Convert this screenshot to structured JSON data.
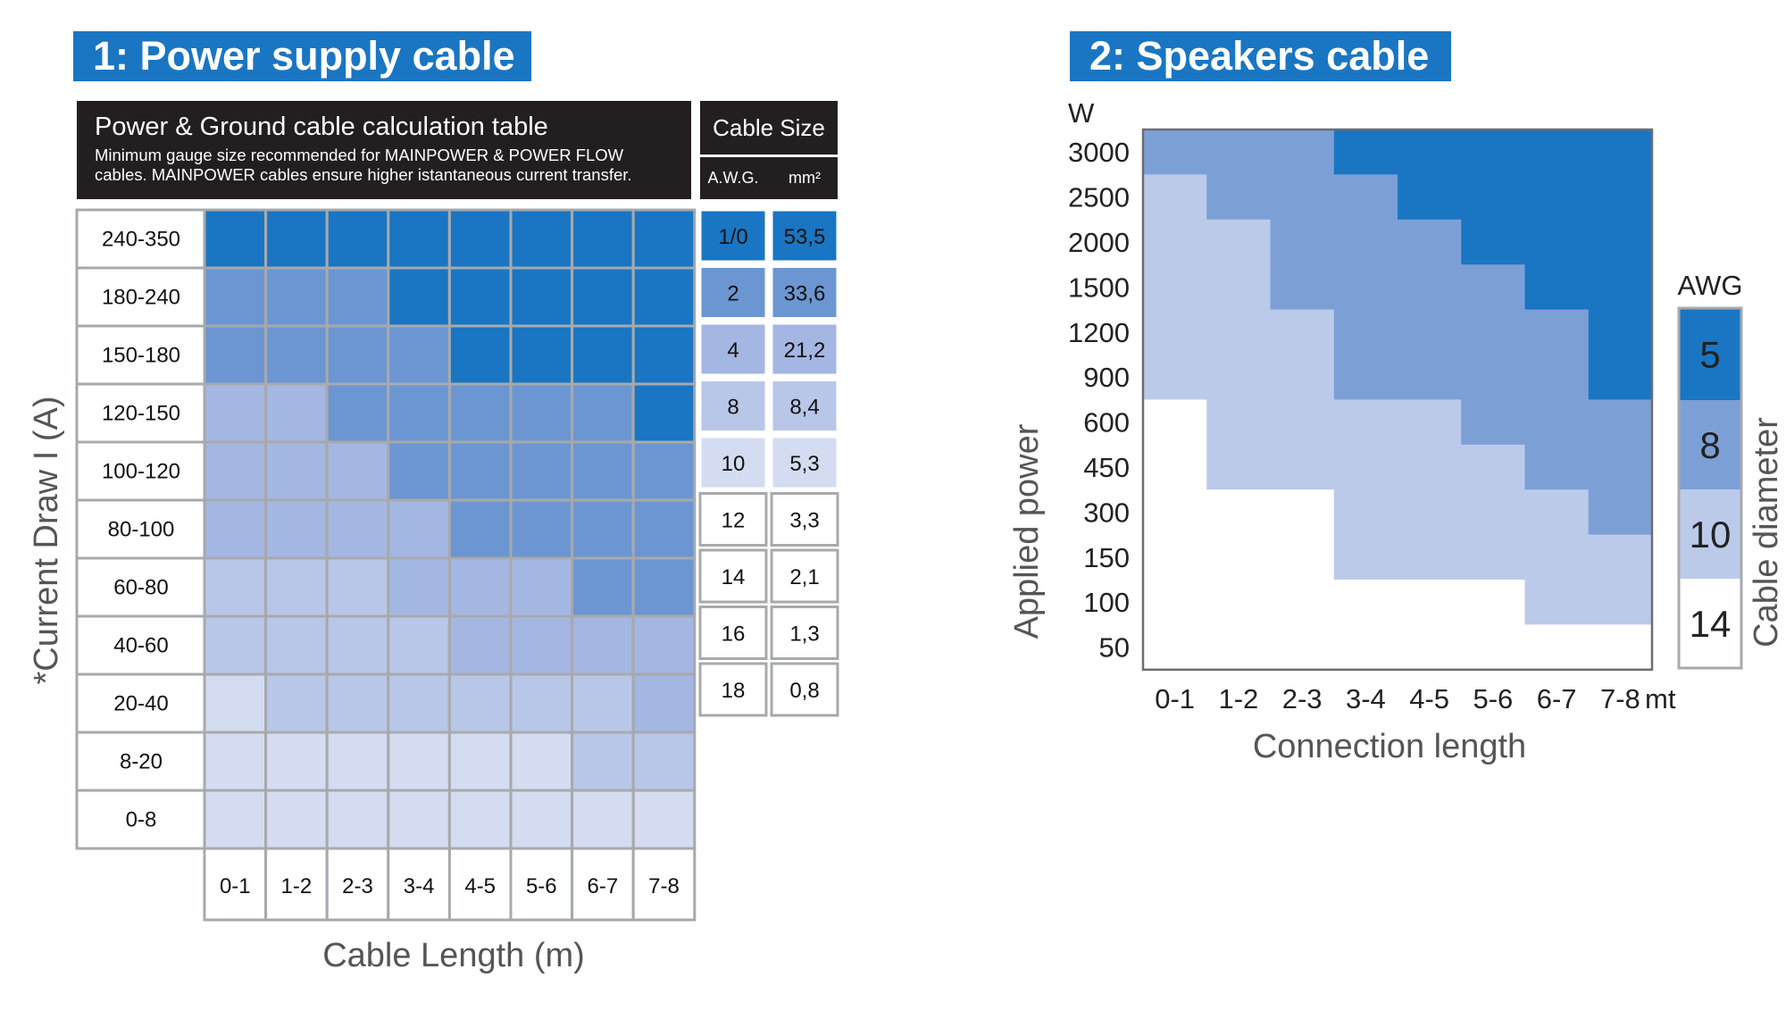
{
  "panel1": {
    "banner": "1: Power supply cable",
    "header_title": "Power & Ground cable calculation table",
    "header_sub_line1": "Minimum gauge size recommended for MAINPOWER & POWER FLOW",
    "header_sub_line2": "cables. MAINPOWER cables ensure higher istantaneous current transfer.",
    "cable_size_title": "Cable Size",
    "awg_header": "A.W.G.",
    "mm2_header": "mm²"
  },
  "panel2": {
    "banner": "2: Speakers cable"
  },
  "colors": {
    "awg_1_0": "#1a76c2",
    "awg_2": "#6b96d1",
    "awg_4": "#a4b6e2",
    "awg_8": "#b8c6e8",
    "awg_10": "#d3dcf1",
    "white": "#ffffff",
    "speaker_5": "#1a76c2",
    "speaker_8": "#7ca0d6",
    "speaker_10": "#bccaea",
    "speaker_14": "#ffffff"
  },
  "chart_data": [
    {
      "type": "heatmap",
      "ylabel": "*Current Draw I (A)",
      "xlabel": "Cable Length (m)",
      "x_categories": [
        "0-1",
        "1-2",
        "2-3",
        "3-4",
        "4-5",
        "5-6",
        "6-7",
        "7-8"
      ],
      "y_categories": [
        "240-350",
        "180-240",
        "150-180",
        "120-150",
        "100-120",
        "80-100",
        "60-80",
        "40-60",
        "20-40",
        "8-20",
        "0-8"
      ],
      "values_awg": [
        [
          "1/0",
          "1/0",
          "1/0",
          "1/0",
          "1/0",
          "1/0",
          "1/0",
          "1/0"
        ],
        [
          "2",
          "2",
          "2",
          "1/0",
          "1/0",
          "1/0",
          "1/0",
          "1/0"
        ],
        [
          "2",
          "2",
          "2",
          "2",
          "1/0",
          "1/0",
          "1/0",
          "1/0"
        ],
        [
          "4",
          "4",
          "2",
          "2",
          "2",
          "2",
          "2",
          "1/0"
        ],
        [
          "4",
          "4",
          "4",
          "2",
          "2",
          "2",
          "2",
          "2"
        ],
        [
          "4",
          "4",
          "4",
          "4",
          "2",
          "2",
          "2",
          "2"
        ],
        [
          "8",
          "8",
          "8",
          "4",
          "4",
          "4",
          "2",
          "2"
        ],
        [
          "8",
          "8",
          "8",
          "8",
          "4",
          "4",
          "4",
          "4"
        ],
        [
          "10",
          "8",
          "8",
          "8",
          "8",
          "8",
          "8",
          "4"
        ],
        [
          "10",
          "10",
          "10",
          "10",
          "10",
          "10",
          "8",
          "8"
        ],
        [
          "10",
          "10",
          "10",
          "10",
          "10",
          "10",
          "10",
          "10"
        ]
      ],
      "legend": [
        {
          "awg": "1/0",
          "mm2": "53,5",
          "color": "#1a76c2",
          "light_text": false
        },
        {
          "awg": "2",
          "mm2": "33,6",
          "color": "#6b96d1"
        },
        {
          "awg": "4",
          "mm2": "21,2",
          "color": "#a4b6e2"
        },
        {
          "awg": "8",
          "mm2": "8,4",
          "color": "#b8c6e8"
        },
        {
          "awg": "10",
          "mm2": "5,3",
          "color": "#d3dcf1"
        },
        {
          "awg": "12",
          "mm2": "3,3",
          "color": "#ffffff"
        },
        {
          "awg": "14",
          "mm2": "2,1",
          "color": "#ffffff"
        },
        {
          "awg": "16",
          "mm2": "1,3",
          "color": "#ffffff"
        },
        {
          "awg": "18",
          "mm2": "0,8",
          "color": "#ffffff"
        }
      ]
    },
    {
      "type": "heatmap",
      "ylabel": "Applied power",
      "y_unit": "W",
      "xlabel": "Connection length",
      "x_unit": "mt",
      "x_categories": [
        "0-1",
        "1-2",
        "2-3",
        "3-4",
        "4-5",
        "5-6",
        "6-7",
        "7-8"
      ],
      "y_categories": [
        "3000",
        "2500",
        "2000",
        "1500",
        "1200",
        "900",
        "600",
        "450",
        "300",
        "150",
        "100",
        "50"
      ],
      "values_awg": [
        [
          8,
          8,
          8,
          5,
          5,
          5,
          5,
          5
        ],
        [
          10,
          8,
          8,
          8,
          5,
          5,
          5,
          5
        ],
        [
          10,
          10,
          8,
          8,
          8,
          5,
          5,
          5
        ],
        [
          10,
          10,
          8,
          8,
          8,
          8,
          5,
          5
        ],
        [
          10,
          10,
          10,
          8,
          8,
          8,
          8,
          5
        ],
        [
          10,
          10,
          10,
          8,
          8,
          8,
          8,
          5
        ],
        [
          14,
          10,
          10,
          10,
          10,
          8,
          8,
          8
        ],
        [
          14,
          10,
          10,
          10,
          10,
          10,
          8,
          8
        ],
        [
          14,
          14,
          14,
          10,
          10,
          10,
          10,
          8
        ],
        [
          14,
          14,
          14,
          10,
          10,
          10,
          10,
          10
        ],
        [
          14,
          14,
          14,
          14,
          14,
          14,
          10,
          10
        ],
        [
          14,
          14,
          14,
          14,
          14,
          14,
          14,
          14
        ]
      ],
      "legend_title": "AWG",
      "legend_side_label": "Cable diameter",
      "legend": [
        {
          "awg": "5",
          "color": "#1a76c2"
        },
        {
          "awg": "8",
          "color": "#7ca0d6"
        },
        {
          "awg": "10",
          "color": "#bccaea"
        },
        {
          "awg": "14",
          "color": "#ffffff"
        }
      ]
    }
  ]
}
